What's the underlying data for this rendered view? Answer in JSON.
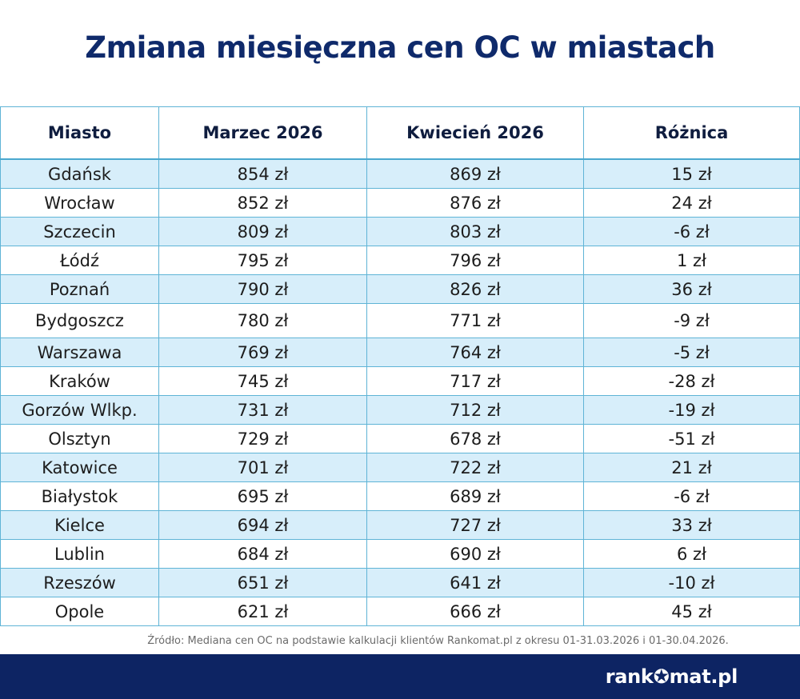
{
  "title": "Zmiana miesięczna cen OC w miastach",
  "chart_data": {
    "type": "table",
    "columns": [
      "Miasto",
      "Marzec 2026",
      "Kwiecień 2026",
      "Różnica"
    ],
    "rows": [
      [
        "Gdańsk",
        "854 zł",
        "869 zł",
        "15 zł"
      ],
      [
        "Wrocław",
        "852 zł",
        "876 zł",
        "24 zł"
      ],
      [
        "Szczecin",
        "809 zł",
        "803 zł",
        "-6 zł"
      ],
      [
        "Łódź",
        "795 zł",
        "796 zł",
        "1 zł"
      ],
      [
        "Poznań",
        "790 zł",
        "826 zł",
        "36 zł"
      ],
      [
        "Bydgoszcz",
        "780 zł",
        "771 zł",
        "-9 zł"
      ],
      [
        "Warszawa",
        "769 zł",
        "764 zł",
        "-5 zł"
      ],
      [
        "Kraków",
        "745 zł",
        "717 zł",
        "-28 zł"
      ],
      [
        "Gorzów Wlkp.",
        "731 zł",
        "712 zł",
        "-19 zł"
      ],
      [
        "Olsztyn",
        "729 zł",
        "678 zł",
        "-51 zł"
      ],
      [
        "Katowice",
        "701 zł",
        "722 zł",
        "21 zł"
      ],
      [
        "Białystok",
        "695 zł",
        "689 zł",
        "-6 zł"
      ],
      [
        "Kielce",
        "694 zł",
        "727 zł",
        "33 zł"
      ],
      [
        "Lublin",
        "684 zł",
        "690 zł",
        "6 zł"
      ],
      [
        "Rzeszów",
        "651 zł",
        "641 zł",
        "-10 zł"
      ],
      [
        "Opole",
        "621 zł",
        "666 zł",
        "45 zł"
      ]
    ]
  },
  "source": "Źródło: Mediana cen OC na podstawie kalkulacji klientów Rankomat.pl z okresu 01-31.03.2026 i 01-30.04.2026.",
  "footer": {
    "logo_left": "rank",
    "logo_star": "✪",
    "logo_right": "mat.pl",
    "background": "#0d2463"
  },
  "colors": {
    "title": "#0f2a6b",
    "row_stripe": "#d7eefa",
    "border": "#5fb4d6"
  }
}
